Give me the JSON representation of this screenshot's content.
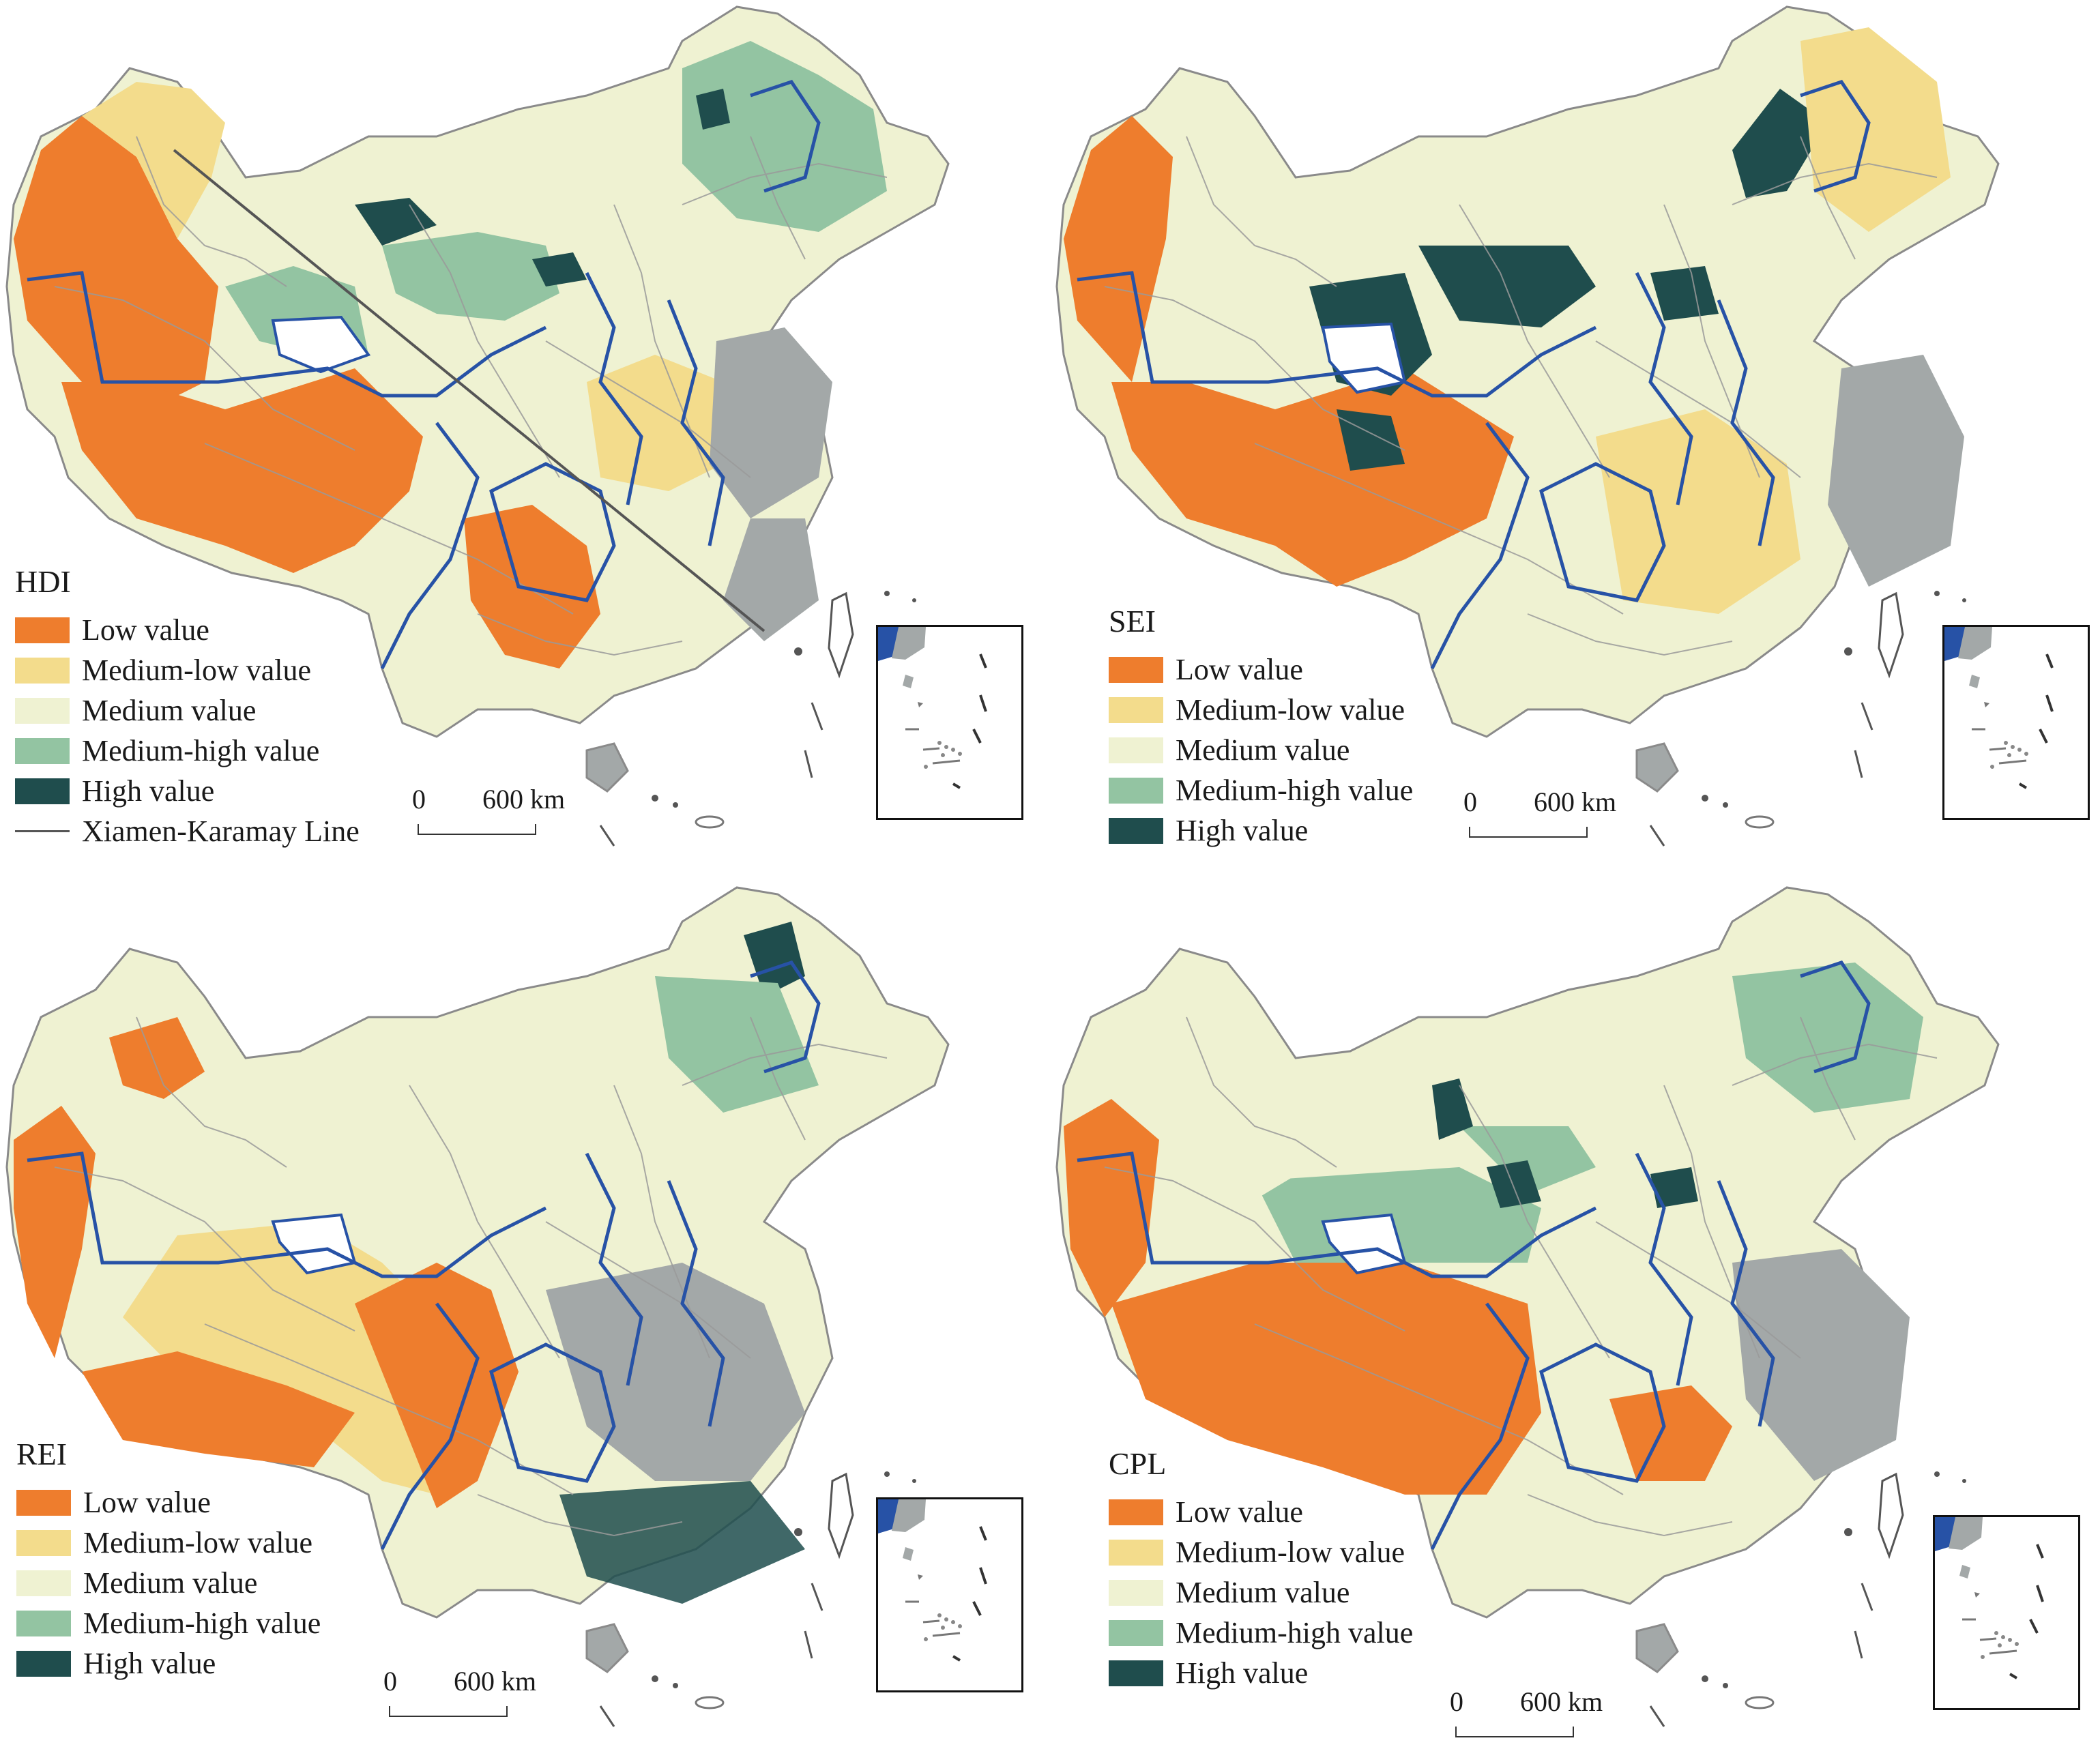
{
  "colors": {
    "low": "#EE7D2D",
    "medium_low": "#F3DC8C",
    "medium": "#EFF2D2",
    "medium_high": "#93C4A2",
    "high": "#1F4D4D",
    "county_border": "#9A9A9A",
    "region_border": "#2752A6",
    "urban_gray": "#A3A8A8",
    "line": "#555555"
  },
  "legend_items": [
    {
      "key": "low",
      "label": "Low value"
    },
    {
      "key": "medium_low",
      "label": "Medium-low value"
    },
    {
      "key": "medium",
      "label": "Medium value"
    },
    {
      "key": "medium_high",
      "label": "Medium-high value"
    },
    {
      "key": "high",
      "label": "High value"
    }
  ],
  "panels": [
    {
      "id": "hdi",
      "title": "HDI",
      "line_label": "Xiamen-Karamay Line",
      "scale": {
        "zero": "0",
        "distance": "600 km"
      }
    },
    {
      "id": "sei",
      "title": "SEI",
      "line_label": "",
      "scale": {
        "zero": "0",
        "distance": "600 km"
      }
    },
    {
      "id": "rei",
      "title": "REI",
      "line_label": "",
      "scale": {
        "zero": "0",
        "distance": "600  km"
      }
    },
    {
      "id": "cpl",
      "title": "CPL",
      "line_label": "",
      "scale": {
        "zero": "0",
        "distance": "600 km"
      }
    }
  ]
}
